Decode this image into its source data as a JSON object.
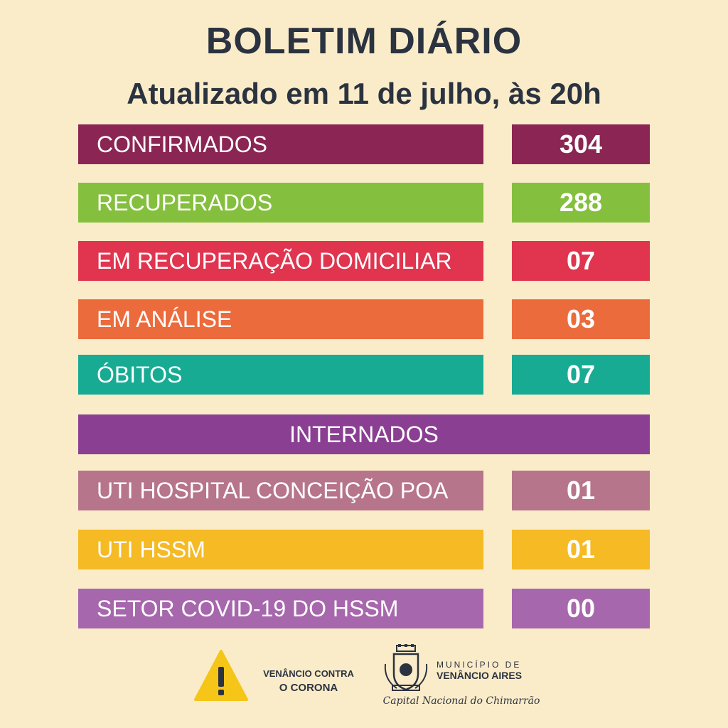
{
  "header": {
    "title": "BOLETIM DIÁRIO",
    "subtitle": "Atualizado em 11 de julho, às 20h"
  },
  "rows": [
    {
      "label": "CONFIRMADOS",
      "value": "304",
      "color": "#8b2553"
    },
    {
      "label": "RECUPERADOS",
      "value": "288",
      "color": "#85bf3e"
    },
    {
      "label": "EM RECUPERAÇÃO DOMICILIAR",
      "value": "07",
      "color": "#e0344f"
    },
    {
      "label": "EM ANÁLISE",
      "value": "03",
      "color": "#ec6b3c"
    },
    {
      "label": "ÓBITOS",
      "value": "07",
      "color": "#17ab94"
    }
  ],
  "internados": {
    "header": "INTERNADOS",
    "color": "#8a3f92",
    "rows": [
      {
        "label": "UTI HOSPITAL CONCEIÇÃO POA",
        "value": "01",
        "color": "#b6758b"
      },
      {
        "label": "UTI HSSM",
        "value": "01",
        "color": "#f5ba24"
      },
      {
        "label": "SETOR COVID-19 DO HSSM",
        "value": "00",
        "color": "#a767ad"
      }
    ]
  },
  "footer": {
    "campaign_line1": "VENÂNCIO CONTRA",
    "campaign_line2": "O CORONA",
    "campaign_icon": "warning-triangle-icon",
    "warning_color": "#f5c518",
    "municipality_line1": "MUNICÍPIO DE",
    "municipality_line2": "VENÂNCIO AIRES",
    "tagline": "Capital Nacional do Chimarrão",
    "crest_icon": "municipal-crest-icon"
  }
}
